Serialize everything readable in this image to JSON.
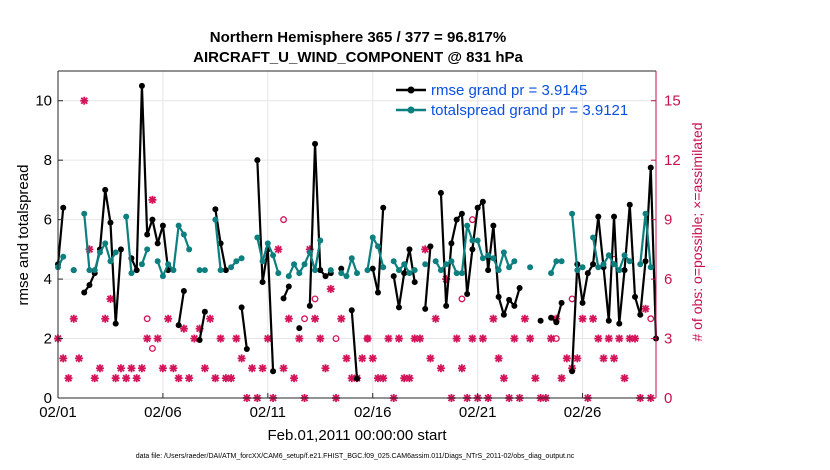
{
  "chart_data": {
    "type": "line",
    "title_line1": "Northern Hemisphere 365 / 377 = 96.817%",
    "title_line2": "AIRCRAFT_U_WIND_COMPONENT @ 831 hPa",
    "xlabel": "Feb.01,2011 00:00:00 start",
    "ylabel": "rmse and totalspread",
    "y2label": "# of obs: o=possible; ×=assimilated",
    "footnote": "data file: /Users/raeder/DAI/ATM_forcXX/CAM6_setup/f.e21.FHIST_BGC.f09_025.CAM6assim.011/Diags_NTrS_2011-02/obs_diag_output.nc",
    "xlim": [
      0,
      28.5
    ],
    "ylim": [
      0,
      11
    ],
    "y2lim": [
      0,
      16.5
    ],
    "x_ticks": [
      {
        "x": 0,
        "label": "02/01"
      },
      {
        "x": 5,
        "label": "02/06"
      },
      {
        "x": 10,
        "label": "02/11"
      },
      {
        "x": 15,
        "label": "02/16"
      },
      {
        "x": 20,
        "label": "02/21"
      },
      {
        "x": 25,
        "label": "02/26"
      }
    ],
    "y_ticks": [
      {
        "v": 0,
        "label": "0"
      },
      {
        "v": 2,
        "label": "2"
      },
      {
        "v": 4,
        "label": "4"
      },
      {
        "v": 6,
        "label": "6"
      },
      {
        "v": 8,
        "label": "8"
      },
      {
        "v": 10,
        "label": "10"
      }
    ],
    "y2_ticks": [
      {
        "v": 0,
        "label": "0"
      },
      {
        "v": 3,
        "label": "3"
      },
      {
        "v": 6,
        "label": "6"
      },
      {
        "v": 9,
        "label": "9"
      },
      {
        "v": 12,
        "label": "12"
      },
      {
        "v": 15,
        "label": "15"
      }
    ],
    "colors": {
      "rmse": "#000000",
      "spread": "#0e7f7f",
      "obs": "#d4145a",
      "axis_right": "#c8104f",
      "legend_text": "#0a50e0"
    },
    "series": [
      {
        "name": "rmse grand pr = 3.9145",
        "key": "rmse",
        "values": [
          [
            0.0,
            4.5
          ],
          [
            0.25,
            6.4
          ],
          [
            0.75,
            4.3
          ],
          [
            1.25,
            3.55
          ],
          [
            1.5,
            3.8
          ],
          [
            1.75,
            4.2
          ],
          [
            2.0,
            5.0
          ],
          [
            2.25,
            7.0
          ],
          [
            2.5,
            5.9
          ],
          [
            2.75,
            2.5
          ],
          [
            3.0,
            5.0
          ],
          [
            3.5,
            4.7
          ],
          [
            3.75,
            4.3
          ],
          [
            4.0,
            10.5
          ],
          [
            4.25,
            5.5
          ],
          [
            4.5,
            6.0
          ],
          [
            4.75,
            5.2
          ],
          [
            5.0,
            5.8
          ],
          [
            5.25,
            4.3
          ],
          [
            5.75,
            2.45
          ],
          [
            6.0,
            3.6
          ],
          [
            6.75,
            1.95
          ],
          [
            7.0,
            2.9
          ],
          [
            7.5,
            6.35
          ],
          [
            7.75,
            5.2
          ],
          [
            8.0,
            4.3
          ],
          [
            8.75,
            3.05
          ],
          [
            9.0,
            1.65
          ],
          [
            9.5,
            8.0
          ],
          [
            9.75,
            3.9
          ],
          [
            10.0,
            5.0
          ],
          [
            10.25,
            0.9
          ],
          [
            10.75,
            3.35
          ],
          [
            11.0,
            3.75
          ],
          [
            11.5,
            2.35
          ],
          [
            12.0,
            3.1
          ],
          [
            12.25,
            8.55
          ],
          [
            12.5,
            4.3
          ],
          [
            12.75,
            4.1
          ],
          [
            13.0,
            4.2
          ],
          [
            13.5,
            4.35
          ],
          [
            14.0,
            2.95
          ],
          [
            14.25,
            0.65
          ],
          [
            15.0,
            4.35
          ],
          [
            15.25,
            3.55
          ],
          [
            15.5,
            6.4
          ],
          [
            16.0,
            4.1
          ],
          [
            16.25,
            3.05
          ],
          [
            16.5,
            4.2
          ],
          [
            16.75,
            5.0
          ],
          [
            17.0,
            3.9
          ],
          [
            17.5,
            3.0
          ],
          [
            17.75,
            5.1
          ],
          [
            18.25,
            6.9
          ],
          [
            18.5,
            3.1
          ],
          [
            18.75,
            5.2
          ],
          [
            19.0,
            6.0
          ],
          [
            19.25,
            6.2
          ],
          [
            19.5,
            3.5
          ],
          [
            19.75,
            5.0
          ],
          [
            20.0,
            6.4
          ],
          [
            20.25,
            6.6
          ],
          [
            20.5,
            4.3
          ],
          [
            20.75,
            5.8
          ],
          [
            21.0,
            3.4
          ],
          [
            21.25,
            2.8
          ],
          [
            21.5,
            3.3
          ],
          [
            21.75,
            3.1
          ],
          [
            22.0,
            3.7
          ],
          [
            23.0,
            2.6
          ],
          [
            23.5,
            2.7
          ],
          [
            23.75,
            2.55
          ],
          [
            24.0,
            3.2
          ],
          [
            24.5,
            0.9
          ],
          [
            24.75,
            4.5
          ],
          [
            25.0,
            3.2
          ],
          [
            25.25,
            4.2
          ],
          [
            25.5,
            4.5
          ],
          [
            25.75,
            6.1
          ],
          [
            26.0,
            4.4
          ],
          [
            26.25,
            2.6
          ],
          [
            26.5,
            6.1
          ],
          [
            26.75,
            2.5
          ],
          [
            27.0,
            4.3
          ],
          [
            27.25,
            6.5
          ],
          [
            27.5,
            3.4
          ],
          [
            27.75,
            2.8
          ],
          [
            28.0,
            4.6
          ],
          [
            28.25,
            7.75
          ],
          [
            28.5,
            2.0
          ]
        ]
      },
      {
        "name": "totalspread grand pr = 3.9121",
        "key": "spread",
        "values": [
          [
            0.0,
            4.4
          ],
          [
            0.25,
            4.75
          ],
          [
            0.75,
            4.3
          ],
          [
            1.25,
            6.2
          ],
          [
            1.5,
            4.3
          ],
          [
            1.75,
            4.3
          ],
          [
            2.0,
            4.9
          ],
          [
            2.25,
            5.2
          ],
          [
            2.5,
            4.6
          ],
          [
            2.75,
            4.9
          ],
          [
            3.25,
            6.1
          ],
          [
            3.5,
            4.2
          ],
          [
            4.0,
            4.5
          ],
          [
            4.25,
            5.0
          ],
          [
            4.75,
            4.6
          ],
          [
            5.0,
            4.1
          ],
          [
            5.25,
            4.5
          ],
          [
            5.5,
            4.3
          ],
          [
            5.75,
            5.8
          ],
          [
            6.0,
            5.5
          ],
          [
            6.25,
            5.0
          ],
          [
            6.75,
            4.3
          ],
          [
            7.0,
            4.3
          ],
          [
            7.5,
            6.0
          ],
          [
            7.75,
            4.3
          ],
          [
            8.25,
            4.4
          ],
          [
            8.5,
            4.6
          ],
          [
            8.75,
            4.7
          ],
          [
            9.5,
            5.4
          ],
          [
            9.75,
            4.6
          ],
          [
            10.0,
            5.2
          ],
          [
            10.25,
            4.8
          ],
          [
            10.5,
            4.2
          ],
          [
            11.0,
            4.1
          ],
          [
            11.25,
            4.5
          ],
          [
            11.5,
            4.2
          ],
          [
            11.75,
            4.5
          ],
          [
            12.0,
            4.9
          ],
          [
            12.25,
            4.3
          ],
          [
            12.5,
            5.3
          ],
          [
            13.0,
            4.3
          ],
          [
            13.5,
            4.2
          ],
          [
            13.75,
            4.1
          ],
          [
            14.0,
            4.7
          ],
          [
            14.25,
            4.2
          ],
          [
            14.75,
            4.3
          ],
          [
            15.0,
            5.4
          ],
          [
            15.25,
            5.1
          ],
          [
            15.5,
            4.4
          ],
          [
            16.0,
            4.6
          ],
          [
            16.25,
            4.3
          ],
          [
            16.5,
            4.5
          ],
          [
            16.75,
            4.2
          ],
          [
            17.0,
            4.3
          ],
          [
            17.5,
            4.5
          ],
          [
            18.0,
            4.6
          ],
          [
            18.25,
            4.3
          ],
          [
            18.5,
            4.5
          ],
          [
            18.75,
            4.6
          ],
          [
            19.0,
            4.2
          ],
          [
            19.25,
            4.2
          ],
          [
            19.5,
            5.8
          ],
          [
            19.75,
            5.3
          ],
          [
            20.0,
            5.3
          ],
          [
            20.25,
            4.7
          ],
          [
            20.5,
            4.8
          ],
          [
            20.75,
            4.7
          ],
          [
            21.0,
            4.3
          ],
          [
            21.25,
            4.9
          ],
          [
            21.5,
            4.4
          ],
          [
            21.75,
            4.6
          ],
          [
            22.5,
            4.4
          ],
          [
            23.5,
            4.2
          ],
          [
            23.75,
            4.6
          ],
          [
            24.0,
            4.6
          ],
          [
            24.5,
            6.2
          ],
          [
            24.75,
            4.3
          ],
          [
            25.0,
            4.4
          ],
          [
            25.5,
            5.4
          ],
          [
            25.75,
            4.4
          ],
          [
            26.0,
            4.5
          ],
          [
            26.25,
            4.8
          ],
          [
            26.5,
            4.5
          ],
          [
            26.75,
            4.3
          ],
          [
            27.0,
            4.8
          ],
          [
            27.25,
            4.6
          ],
          [
            27.75,
            4.5
          ],
          [
            28.0,
            6.2
          ],
          [
            28.25,
            4.4
          ]
        ]
      }
    ],
    "obs_assimilated": [
      [
        0,
        3
      ],
      [
        0.25,
        2
      ],
      [
        0.5,
        1
      ],
      [
        0.75,
        4
      ],
      [
        1,
        2
      ],
      [
        1.25,
        15
      ],
      [
        1.5,
        7.5
      ],
      [
        1.75,
        1
      ],
      [
        2,
        1.5
      ],
      [
        2.25,
        4
      ],
      [
        2.5,
        5
      ],
      [
        2.75,
        1
      ],
      [
        3,
        1.5
      ],
      [
        3.25,
        1
      ],
      [
        3.5,
        1.5
      ],
      [
        3.75,
        1
      ],
      [
        4,
        1.5
      ],
      [
        4.25,
        3
      ],
      [
        4.5,
        10
      ],
      [
        4.75,
        3
      ],
      [
        5,
        1.5
      ],
      [
        5.25,
        4
      ],
      [
        5.5,
        1.5
      ],
      [
        5.75,
        1
      ],
      [
        6,
        3.5
      ],
      [
        6.25,
        1
      ],
      [
        6.5,
        3
      ],
      [
        6.75,
        3.5
      ],
      [
        7,
        1.5
      ],
      [
        7.25,
        4
      ],
      [
        7.5,
        1
      ],
      [
        7.75,
        3
      ],
      [
        8,
        1
      ],
      [
        8.25,
        1
      ],
      [
        8.5,
        3
      ],
      [
        8.75,
        2
      ],
      [
        9,
        0
      ],
      [
        9.25,
        1.5
      ],
      [
        9.5,
        0
      ],
      [
        9.75,
        1.5
      ],
      [
        10,
        3
      ],
      [
        10.25,
        0
      ],
      [
        10.5,
        7.5
      ],
      [
        10.75,
        1.5
      ],
      [
        11,
        4
      ],
      [
        11.25,
        1
      ],
      [
        11.5,
        3
      ],
      [
        11.75,
        0
      ],
      [
        12,
        7.5
      ],
      [
        12.25,
        4
      ],
      [
        12.5,
        3
      ],
      [
        12.75,
        1.5
      ],
      [
        13,
        5.5
      ],
      [
        13.25,
        0
      ],
      [
        13.5,
        4
      ],
      [
        13.75,
        2
      ],
      [
        14,
        1
      ],
      [
        14.25,
        1
      ],
      [
        14.5,
        2
      ],
      [
        14.75,
        3
      ],
      [
        15,
        2
      ],
      [
        15.25,
        1
      ],
      [
        15.5,
        1
      ],
      [
        15.75,
        3
      ],
      [
        16,
        0
      ],
      [
        16.25,
        3
      ],
      [
        16.5,
        1
      ],
      [
        16.75,
        1
      ],
      [
        17,
        3
      ],
      [
        17.25,
        3
      ],
      [
        17.5,
        7.5
      ],
      [
        17.75,
        2
      ],
      [
        18,
        4
      ],
      [
        18.25,
        1.5
      ],
      [
        18.5,
        6
      ],
      [
        18.75,
        0
      ],
      [
        19,
        3
      ],
      [
        19.25,
        1.5
      ],
      [
        19.5,
        0
      ],
      [
        19.75,
        3
      ],
      [
        20,
        0
      ],
      [
        20.25,
        3
      ],
      [
        20.5,
        0
      ],
      [
        20.75,
        4
      ],
      [
        21,
        2
      ],
      [
        21.25,
        1
      ],
      [
        21.5,
        0
      ],
      [
        21.75,
        3
      ],
      [
        22,
        0
      ],
      [
        22.25,
        4
      ],
      [
        22.5,
        3
      ],
      [
        22.75,
        1
      ],
      [
        23,
        0
      ],
      [
        23.25,
        0
      ],
      [
        23.5,
        3
      ],
      [
        23.75,
        4
      ],
      [
        24,
        1
      ],
      [
        24.25,
        2
      ],
      [
        24.5,
        1.5
      ],
      [
        24.75,
        2
      ],
      [
        25,
        4
      ],
      [
        25.25,
        0
      ],
      [
        25.5,
        4
      ],
      [
        25.75,
        3
      ],
      [
        26,
        2
      ],
      [
        26.25,
        3
      ],
      [
        26.5,
        2
      ],
      [
        26.75,
        3
      ],
      [
        27,
        1
      ],
      [
        27.25,
        3
      ],
      [
        27.5,
        3
      ],
      [
        27.75,
        0
      ],
      [
        28,
        4.5
      ],
      [
        28.25,
        0
      ]
    ],
    "obs_possible": [
      [
        4.25,
        4
      ],
      [
        4.5,
        2.5
      ],
      [
        10.75,
        9
      ],
      [
        11.75,
        4
      ],
      [
        12.25,
        5
      ],
      [
        13.25,
        3
      ],
      [
        14.75,
        3
      ],
      [
        19.25,
        5
      ],
      [
        19.75,
        9
      ],
      [
        23.75,
        3
      ],
      [
        24.5,
        5
      ],
      [
        26.5,
        7
      ],
      [
        28.25,
        4
      ]
    ]
  }
}
